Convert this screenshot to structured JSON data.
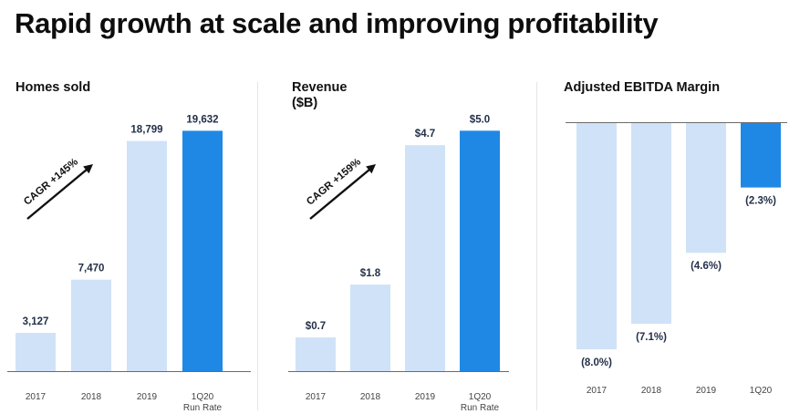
{
  "page": {
    "title": "Rapid growth at scale and improving profitability"
  },
  "colors": {
    "light_bar": "#cfe2f8",
    "dark_bar": "#1f88e5",
    "axis": "#6b6b6b",
    "label": "#23304a"
  },
  "chart_data": [
    {
      "type": "bar",
      "title": "Homes sold",
      "categories": [
        "2017",
        "2018",
        "2019",
        "1Q20"
      ],
      "category_sublabels": [
        "",
        "",
        "",
        "Run Rate"
      ],
      "values": [
        3127,
        7470,
        18799,
        19632
      ],
      "value_labels": [
        "3,127",
        "7,470",
        "18,799",
        "19,632"
      ],
      "highlight_index": 3,
      "ylim": [
        0,
        21600
      ],
      "annotation": "CAGR +145%",
      "xlabel": "",
      "ylabel": "",
      "grid": false
    },
    {
      "type": "bar",
      "title": "Revenue",
      "subtitle": "($B)",
      "categories": [
        "2017",
        "2018",
        "2019",
        "1Q20"
      ],
      "category_sublabels": [
        "",
        "",
        "",
        "Run Rate"
      ],
      "values": [
        0.7,
        1.8,
        4.7,
        5.0
      ],
      "value_labels": [
        "$0.7",
        "$1.8",
        "$4.7",
        "$5.0"
      ],
      "highlight_index": 3,
      "ylim": [
        0,
        5.5
      ],
      "annotation": "CAGR +159%",
      "xlabel": "",
      "ylabel": "",
      "grid": false
    },
    {
      "type": "bar",
      "title": "Adjusted EBITDA Margin",
      "categories": [
        "2017",
        "2018",
        "2019",
        "1Q20"
      ],
      "values": [
        -8.0,
        -7.1,
        -4.6,
        -2.3
      ],
      "value_labels": [
        "(8.0%)",
        "(7.1%)",
        "(4.6%)",
        "(2.3%)"
      ],
      "highlight_index": 3,
      "ylim": [
        -8.8,
        0
      ],
      "xlabel": "",
      "ylabel": "",
      "grid": false
    }
  ]
}
